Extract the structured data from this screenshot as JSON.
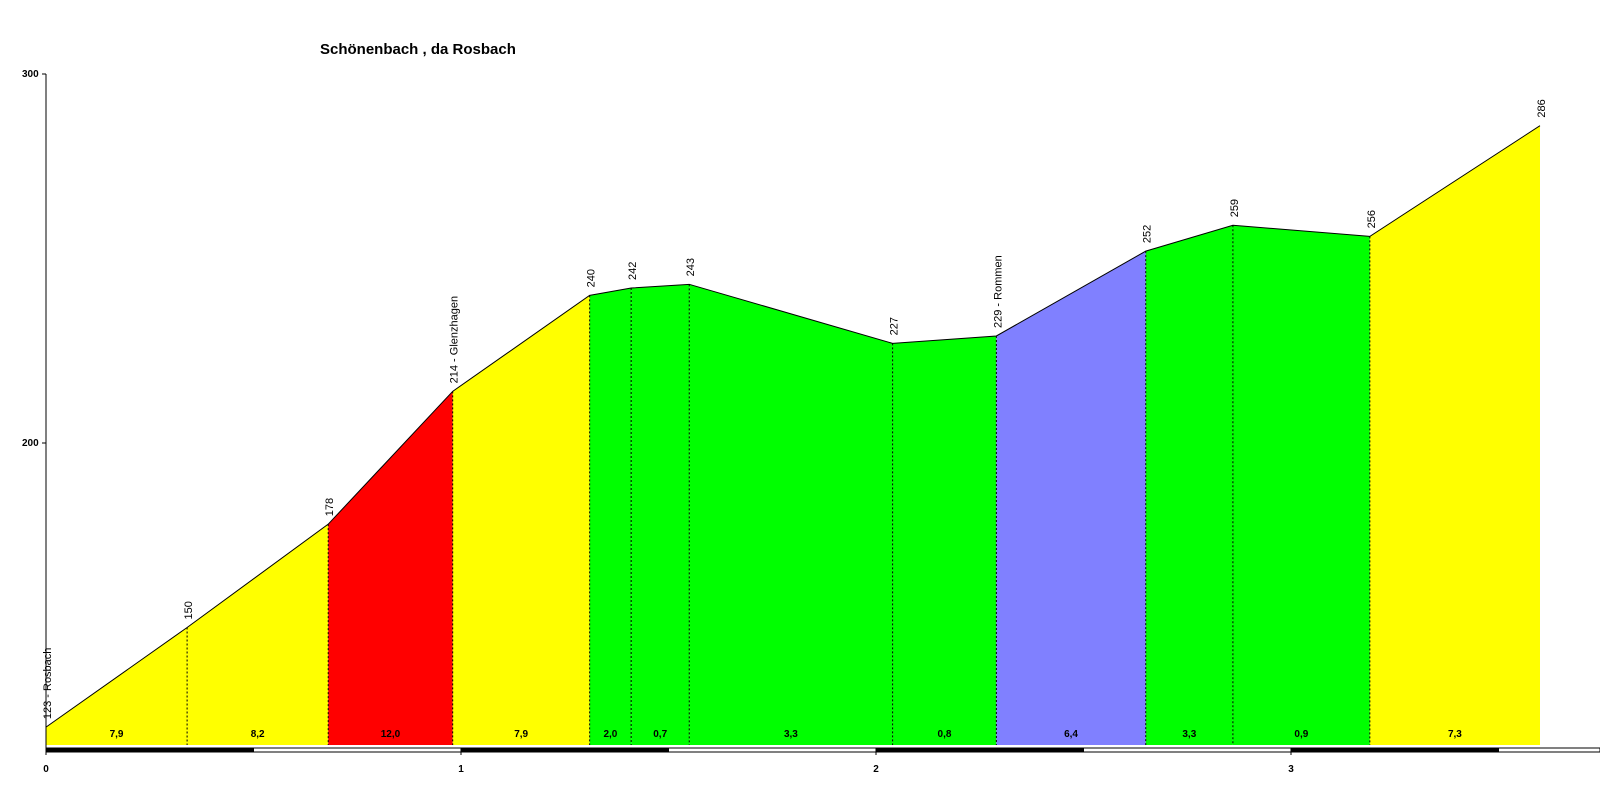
{
  "chart_data": {
    "type": "area",
    "title": "Schönenbach , da Rosbach",
    "xlabel": "",
    "ylabel": "",
    "xlim": [
      0,
      3.75
    ],
    "ylim": [
      112,
      300
    ],
    "y_ticks": [
      {
        "value": 200,
        "label": "200"
      },
      {
        "value": 300,
        "label": "300"
      }
    ],
    "x_ticks": [
      {
        "value": 0,
        "label": "0"
      },
      {
        "value": 1,
        "label": "1"
      },
      {
        "value": 2,
        "label": "2"
      },
      {
        "value": 3,
        "label": "3"
      }
    ],
    "points": [
      {
        "x": 0.0,
        "y": 123,
        "label": "123 - Rosbach"
      },
      {
        "x": 0.34,
        "y": 150,
        "label": "150"
      },
      {
        "x": 0.68,
        "y": 178,
        "label": "178"
      },
      {
        "x": 0.98,
        "y": 214,
        "label": "214 - Glenzhagen"
      },
      {
        "x": 1.31,
        "y": 240,
        "label": "240"
      },
      {
        "x": 1.41,
        "y": 242,
        "label": "242"
      },
      {
        "x": 1.55,
        "y": 243,
        "label": "243"
      },
      {
        "x": 2.04,
        "y": 227,
        "label": "227"
      },
      {
        "x": 2.29,
        "y": 229,
        "label": "229 - Rommen"
      },
      {
        "x": 2.65,
        "y": 252,
        "label": "252"
      },
      {
        "x": 2.86,
        "y": 259,
        "label": "259"
      },
      {
        "x": 3.19,
        "y": 256,
        "label": "256"
      },
      {
        "x": 3.6,
        "y": 286,
        "label": "286"
      }
    ],
    "segments": [
      {
        "grade": "7,9",
        "color": "#ffff00"
      },
      {
        "grade": "8,2",
        "color": "#ffff00"
      },
      {
        "grade": "12,0",
        "color": "#ff0000"
      },
      {
        "grade": "7,9",
        "color": "#ffff00"
      },
      {
        "grade": "2,0",
        "color": "#00ff00"
      },
      {
        "grade": "0,7",
        "color": "#00ff00"
      },
      {
        "grade": "3,3",
        "color": "#00ff00"
      },
      {
        "grade": "0,8",
        "color": "#00ff00"
      },
      {
        "grade": "6,4",
        "color": "#8080ff"
      },
      {
        "grade": "3,3",
        "color": "#00ff00"
      },
      {
        "grade": "0,9",
        "color": "#00ff00"
      },
      {
        "grade": "7,3",
        "color": "#ffff00"
      }
    ],
    "grid": false,
    "legend": "none"
  }
}
